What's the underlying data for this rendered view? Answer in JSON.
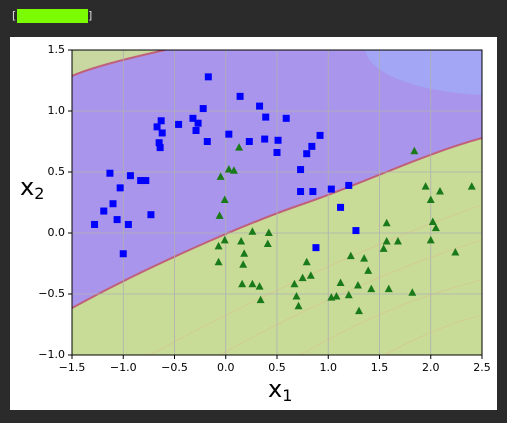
{
  "progress": {
    "open": "[",
    "close": "]"
  },
  "chart_data": {
    "type": "scatter",
    "xlabel": {
      "text": "x",
      "subscript": "1"
    },
    "ylabel": {
      "text": "x",
      "subscript": "2"
    },
    "xlim": [
      -1.5,
      2.5
    ],
    "ylim": [
      -1.0,
      1.5
    ],
    "xticks": [
      {
        "value": -1.5,
        "label": "−1.5"
      },
      {
        "value": -1.0,
        "label": "−1.0"
      },
      {
        "value": -0.5,
        "label": "−0.5"
      },
      {
        "value": 0.0,
        "label": "0.0"
      },
      0.5,
      {
        "value": 1.0,
        "label": "1.0"
      },
      1.5,
      {
        "value": 2.0,
        "label": "2.0"
      },
      2.5
    ],
    "yticks": [
      {
        "value": -1.0,
        "label": "−1.0"
      },
      {
        "value": -0.5,
        "label": "−0.5"
      },
      {
        "value": 0.0,
        "label": "0.0"
      },
      0.5,
      {
        "value": 1.0,
        "label": "1.0"
      },
      1.5
    ],
    "grid": true,
    "series": [
      {
        "color": "#0000ff",
        "marker": "square",
        "x": [
          -0.17,
          0.14,
          0.33,
          -0.22,
          0.39,
          0.59,
          -0.32,
          -0.27,
          -0.46,
          -0.63,
          -0.67,
          -0.62,
          -0.29,
          0.03,
          -0.18,
          0.23,
          0.38,
          0.51,
          -0.65,
          -0.64,
          0.92,
          0.84,
          0.5,
          0.79,
          0.73,
          -1.13,
          -0.93,
          -0.78,
          -0.83,
          -1.03,
          0.73,
          0.85,
          1.03,
          1.2,
          -1.1,
          -1.19,
          -0.73,
          -1.06,
          1.12,
          -1.28,
          -0.95,
          1.27,
          0.88,
          -1.0
        ],
        "values": [
          1.28,
          1.12,
          1.04,
          1.02,
          0.95,
          0.94,
          0.94,
          0.9,
          0.89,
          0.92,
          0.87,
          0.82,
          0.84,
          0.81,
          0.75,
          0.75,
          0.77,
          0.76,
          0.74,
          0.7,
          0.8,
          0.71,
          0.66,
          0.65,
          0.52,
          0.49,
          0.47,
          0.43,
          0.43,
          0.37,
          0.34,
          0.34,
          0.36,
          0.39,
          0.24,
          0.18,
          0.15,
          0.11,
          0.21,
          0.07,
          0.07,
          0.02,
          -0.12,
          -0.17
        ]
      },
      {
        "color": "#1a7a1a",
        "marker": "triangle",
        "x": [
          0.13,
          1.84,
          0.03,
          0.08,
          -0.05,
          1.95,
          2.09,
          2.4,
          -0.01,
          2.0,
          -0.06,
          1.57,
          2.02,
          2.05,
          0.26,
          0.42,
          -0.01,
          0.15,
          -0.07,
          0.41,
          1.57,
          1.68,
          1.54,
          2.0,
          2.24,
          0.18,
          1.22,
          1.35,
          -0.07,
          0.17,
          0.79,
          1.39,
          0.75,
          0.83,
          0.16,
          0.26,
          0.33,
          0.67,
          1.12,
          1.29,
          1.42,
          1.59,
          1.82,
          0.69,
          1.03,
          1.08,
          1.2,
          0.34,
          0.71,
          1.3
        ],
        "values": [
          0.7,
          0.67,
          0.52,
          0.51,
          0.46,
          0.38,
          0.34,
          0.38,
          0.27,
          0.27,
          0.14,
          0.08,
          0.09,
          0.04,
          0.01,
          0.0,
          -0.06,
          -0.07,
          -0.11,
          -0.09,
          -0.07,
          -0.07,
          -0.13,
          -0.06,
          -0.16,
          -0.17,
          -0.19,
          -0.21,
          -0.24,
          -0.26,
          -0.24,
          -0.31,
          -0.37,
          -0.35,
          -0.42,
          -0.42,
          -0.44,
          -0.42,
          -0.41,
          -0.43,
          -0.46,
          -0.46,
          -0.49,
          -0.52,
          -0.53,
          -0.52,
          -0.51,
          -0.55,
          -0.6,
          -0.64
        ]
      }
    ]
  }
}
